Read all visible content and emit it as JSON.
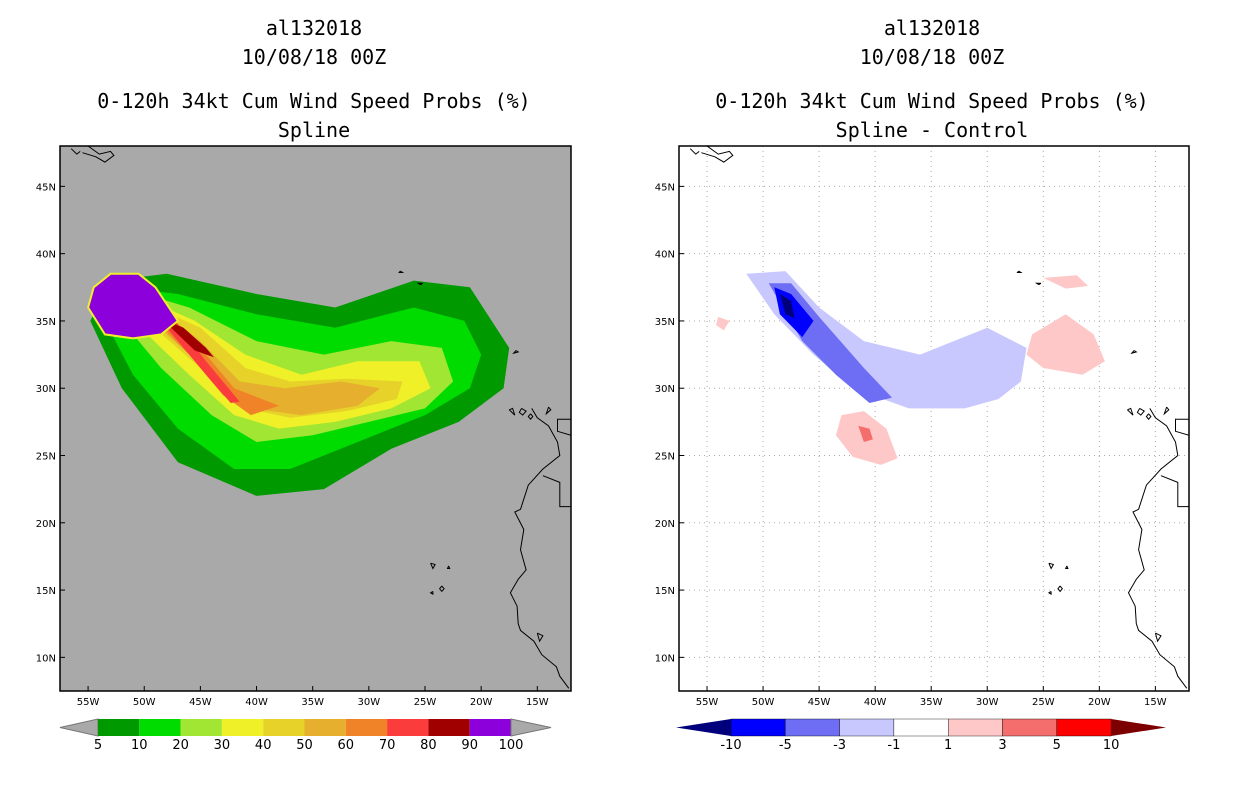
{
  "chart_data": [
    {
      "type": "heatmap",
      "storm": "al132018",
      "datetime": "10/08/18 00Z",
      "title": "0-120h 34kt Cum Wind Speed Probs (%)",
      "subtitle": "Spline",
      "xlim": [
        -57.5,
        -12
      ],
      "ylim": [
        7.5,
        48
      ],
      "x_ticks": [
        "55W",
        "50W",
        "45W",
        "40W",
        "35W",
        "30W",
        "25W",
        "20W",
        "15W"
      ],
      "y_ticks": [
        "10N",
        "15N",
        "20N",
        "25N",
        "30N",
        "35N",
        "40N",
        "45N"
      ],
      "background": "#a9a9a9",
      "colorbar": {
        "levels": [
          "5",
          "10",
          "20",
          "30",
          "40",
          "50",
          "60",
          "70",
          "80",
          "90",
          "100"
        ],
        "colors": [
          "#009a00",
          "#00dc00",
          "#a0e632",
          "#f0f028",
          "#e6d228",
          "#e6af2d",
          "#f08228",
          "#fa3c3c",
          "#a00000",
          "#8c00dc"
        ]
      },
      "regions": [
        {
          "level": 5,
          "outline": [
            [
              -54.8,
              35.0
            ],
            [
              -53.0,
              38.0
            ],
            [
              -48.0,
              38.5
            ],
            [
              -40.0,
              37.0
            ],
            [
              -33.0,
              36.0
            ],
            [
              -26.0,
              38.0
            ],
            [
              -21.0,
              37.5
            ],
            [
              -17.5,
              33.0
            ],
            [
              -18.0,
              30.0
            ],
            [
              -22.0,
              27.5
            ],
            [
              -28.0,
              25.5
            ],
            [
              -34.0,
              22.5
            ],
            [
              -40.0,
              22.0
            ],
            [
              -47.0,
              24.5
            ],
            [
              -52.0,
              30.0
            ],
            [
              -54.8,
              35.0
            ]
          ]
        },
        {
          "level": 10,
          "outline": [
            [
              -53.5,
              35.0
            ],
            [
              -52.0,
              37.5
            ],
            [
              -47.0,
              37.0
            ],
            [
              -40.0,
              35.5
            ],
            [
              -33.0,
              34.5
            ],
            [
              -26.0,
              36.0
            ],
            [
              -21.5,
              35.0
            ],
            [
              -20.0,
              32.5
            ],
            [
              -21.0,
              30.0
            ],
            [
              -25.0,
              28.0
            ],
            [
              -31.0,
              26.0
            ],
            [
              -37.0,
              24.0
            ],
            [
              -42.0,
              24.0
            ],
            [
              -47.0,
              27.0
            ],
            [
              -51.0,
              31.0
            ],
            [
              -53.5,
              35.0
            ]
          ]
        },
        {
          "level": 20,
          "outline": [
            [
              -52.0,
              35.0
            ],
            [
              -50.0,
              37.0
            ],
            [
              -46.0,
              36.0
            ],
            [
              -40.0,
              33.5
            ],
            [
              -34.0,
              32.5
            ],
            [
              -28.0,
              33.5
            ],
            [
              -23.5,
              33.0
            ],
            [
              -22.5,
              30.5
            ],
            [
              -25.0,
              28.5
            ],
            [
              -30.0,
              27.5
            ],
            [
              -35.0,
              26.5
            ],
            [
              -40.0,
              26.0
            ],
            [
              -44.0,
              28.0
            ],
            [
              -48.5,
              31.5
            ],
            [
              -52.0,
              35.0
            ]
          ]
        },
        {
          "level": 30,
          "outline": [
            [
              -51.0,
              35.0
            ],
            [
              -49.5,
              36.5
            ],
            [
              -45.5,
              35.0
            ],
            [
              -41.0,
              32.5
            ],
            [
              -36.0,
              31.0
            ],
            [
              -31.0,
              32.0
            ],
            [
              -25.5,
              32.0
            ],
            [
              -24.5,
              30.0
            ],
            [
              -28.0,
              28.5
            ],
            [
              -33.0,
              27.5
            ],
            [
              -38.0,
              27.0
            ],
            [
              -42.0,
              28.0
            ],
            [
              -46.0,
              31.0
            ],
            [
              -51.0,
              35.0
            ]
          ]
        },
        {
          "level": 40,
          "outline": [
            [
              -50.5,
              35.5
            ],
            [
              -49.0,
              36.0
            ],
            [
              -45.0,
              34.5
            ],
            [
              -41.0,
              31.5
            ],
            [
              -37.0,
              30.5
            ],
            [
              -32.0,
              30.7
            ],
            [
              -27.0,
              30.5
            ],
            [
              -27.5,
              29.2
            ],
            [
              -32.0,
              28.3
            ],
            [
              -37.0,
              27.8
            ],
            [
              -41.0,
              28.5
            ],
            [
              -45.0,
              31.5
            ],
            [
              -50.5,
              35.5
            ]
          ]
        },
        {
          "level": 50,
          "outline": [
            [
              -50.0,
              35.5
            ],
            [
              -48.5,
              35.8
            ],
            [
              -45.0,
              33.5
            ],
            [
              -41.5,
              30.5
            ],
            [
              -37.5,
              30.0
            ],
            [
              -32.5,
              30.5
            ],
            [
              -29.0,
              30.0
            ],
            [
              -31.0,
              28.7
            ],
            [
              -36.0,
              28.0
            ],
            [
              -40.5,
              28.5
            ],
            [
              -44.0,
              31.0
            ],
            [
              -50.0,
              35.5
            ]
          ]
        },
        {
          "level": 60,
          "outline": [
            [
              -49.5,
              35.5
            ],
            [
              -48.0,
              35.5
            ],
            [
              -45.0,
              33.0
            ],
            [
              -42.0,
              30.0
            ],
            [
              -38.0,
              28.7
            ],
            [
              -40.5,
              28.0
            ],
            [
              -43.0,
              29.5
            ],
            [
              -46.0,
              32.5
            ],
            [
              -49.5,
              35.5
            ]
          ]
        },
        {
          "level": 70,
          "outline": [
            [
              -49.0,
              35.5
            ],
            [
              -47.5,
              35.3
            ],
            [
              -44.5,
              32.0
            ],
            [
              -41.5,
              29.0
            ],
            [
              -42.3,
              28.9
            ],
            [
              -44.5,
              31.0
            ],
            [
              -47.5,
              34.0
            ],
            [
              -49.0,
              35.5
            ]
          ]
        },
        {
          "level": 80,
          "outline": [
            [
              -48.5,
              35.2
            ],
            [
              -46.5,
              34.5
            ],
            [
              -44.5,
              33.0
            ],
            [
              -43.8,
              32.3
            ],
            [
              -45.5,
              32.8
            ],
            [
              -48.5,
              35.2
            ]
          ]
        },
        {
          "level": 90,
          "outline": [
            [
              -55.0,
              36.0
            ],
            [
              -54.5,
              37.5
            ],
            [
              -53.0,
              38.5
            ],
            [
              -50.5,
              38.5
            ],
            [
              -49.0,
              37.5
            ],
            [
              -47.0,
              35.0
            ],
            [
              -48.5,
              34.0
            ],
            [
              -51.0,
              33.7
            ],
            [
              -53.5,
              34.0
            ],
            [
              -55.0,
              36.0
            ]
          ]
        }
      ]
    },
    {
      "type": "heatmap",
      "storm": "al132018",
      "datetime": "10/08/18 00Z",
      "title": "0-120h 34kt Cum Wind Speed Probs (%)",
      "subtitle": "Spline - Control",
      "xlim": [
        -57.5,
        -12
      ],
      "ylim": [
        7.5,
        48
      ],
      "x_ticks": [
        "55W",
        "50W",
        "45W",
        "40W",
        "35W",
        "30W",
        "25W",
        "20W",
        "15W"
      ],
      "y_ticks": [
        "10N",
        "15N",
        "20N",
        "25N",
        "30N",
        "35N",
        "40N",
        "45N"
      ],
      "grid": true,
      "colorbar": {
        "levels": [
          "-10",
          "-5",
          "-3",
          "-1",
          "1",
          "3",
          "5",
          "10"
        ],
        "colors": [
          "#00007d",
          "#0000ff",
          "#6e6ef5",
          "#c8c8ff",
          "#ffffff",
          "#ffc8c8",
          "#f56e6e",
          "#ff0000",
          "#7d0000"
        ]
      },
      "regions": [
        {
          "level": -1,
          "outline": [
            [
              -51.5,
              38.5
            ],
            [
              -48.0,
              38.7
            ],
            [
              -45.0,
              36.0
            ],
            [
              -41.0,
              33.5
            ],
            [
              -36.0,
              32.5
            ],
            [
              -30.0,
              34.5
            ],
            [
              -26.5,
              33.0
            ],
            [
              -27.0,
              30.5
            ],
            [
              -29.0,
              29.2
            ],
            [
              -32.0,
              28.5
            ],
            [
              -37.0,
              28.5
            ],
            [
              -42.0,
              30.0
            ],
            [
              -45.5,
              32.5
            ],
            [
              -49.0,
              35.5
            ],
            [
              -51.5,
              38.5
            ]
          ]
        },
        {
          "level": -3,
          "outline": [
            [
              -49.5,
              37.8
            ],
            [
              -47.5,
              37.8
            ],
            [
              -45.0,
              35.3
            ],
            [
              -41.0,
              31.5
            ],
            [
              -38.5,
              29.3
            ],
            [
              -40.5,
              28.9
            ],
            [
              -43.5,
              31.0
            ],
            [
              -46.5,
              33.5
            ],
            [
              -49.5,
              37.8
            ]
          ]
        },
        {
          "level": -5,
          "outline": [
            [
              -49.0,
              37.5
            ],
            [
              -47.5,
              37.0
            ],
            [
              -45.5,
              35.0
            ],
            [
              -46.5,
              33.8
            ],
            [
              -48.5,
              35.5
            ],
            [
              -49.0,
              37.5
            ]
          ]
        },
        {
          "level": -10,
          "outline": [
            [
              -48.5,
              37.0
            ],
            [
              -47.5,
              36.5
            ],
            [
              -47.2,
              35.2
            ],
            [
              -48.0,
              35.5
            ],
            [
              -48.5,
              37.0
            ]
          ]
        },
        {
          "level": 1,
          "outline": [
            [
              -43.0,
              28.0
            ],
            [
              -41.0,
              28.3
            ],
            [
              -39.0,
              27.0
            ],
            [
              -38.0,
              24.8
            ],
            [
              -39.5,
              24.3
            ],
            [
              -42.0,
              24.9
            ],
            [
              -43.5,
              26.5
            ],
            [
              -43.0,
              28.0
            ]
          ]
        },
        {
          "level": 1,
          "outline": [
            [
              -26.0,
              34.0
            ],
            [
              -23.0,
              35.5
            ],
            [
              -20.5,
              34.0
            ],
            [
              -19.5,
              32.0
            ],
            [
              -21.5,
              31.0
            ],
            [
              -25.0,
              31.5
            ],
            [
              -26.5,
              32.5
            ],
            [
              -26.0,
              34.0
            ]
          ]
        },
        {
          "level": 1,
          "outline": [
            [
              -25.0,
              38.2
            ],
            [
              -22.0,
              38.4
            ],
            [
              -21.0,
              37.6
            ],
            [
              -23.0,
              37.4
            ],
            [
              -25.0,
              38.2
            ]
          ]
        },
        {
          "level": 1,
          "outline": [
            [
              -54.0,
              35.3
            ],
            [
              -53.0,
              35.0
            ],
            [
              -53.5,
              34.3
            ],
            [
              -54.2,
              34.7
            ],
            [
              -54.0,
              35.3
            ]
          ]
        },
        {
          "level": 3,
          "outline": [
            [
              -41.5,
              27.2
            ],
            [
              -40.5,
              27.0
            ],
            [
              -40.2,
              26.2
            ],
            [
              -41.0,
              26.0
            ],
            [
              -41.5,
              27.2
            ]
          ]
        }
      ]
    }
  ]
}
